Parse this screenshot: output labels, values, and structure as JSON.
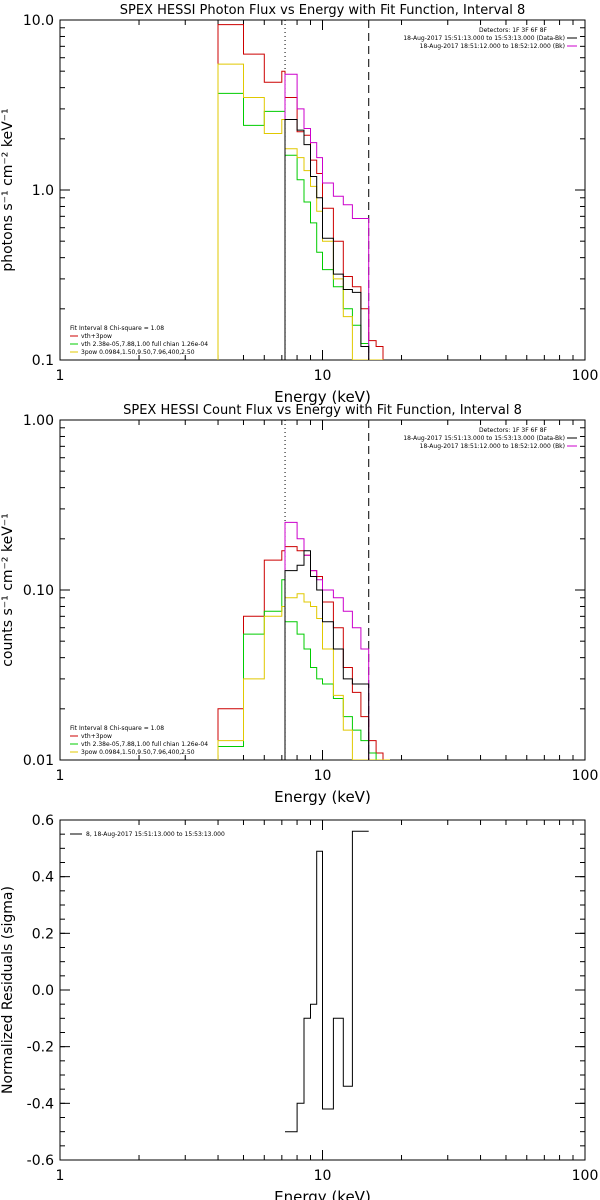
{
  "colors": {
    "black": "#000000",
    "red": "#cc0000",
    "green": "#00cc00",
    "yellow": "#e0c800",
    "magenta": "#cc00cc",
    "blue": "#0000cc"
  },
  "chart_data": [
    {
      "type": "line",
      "step": true,
      "title": "SPEX HESSI Photon Flux vs Energy with Fit Function, Interval 8",
      "xlabel": "Energy  (keV)",
      "ylabel": "photons s⁻¹ cm⁻² keV⁻¹",
      "xscale": "log",
      "yscale": "log",
      "xlim": [
        1,
        100
      ],
      "ylim": [
        0.1,
        10
      ],
      "xticks": [
        "1",
        "10",
        "100"
      ],
      "yticks": [
        "0.1",
        "1.0",
        "10.0"
      ],
      "vlines": [
        {
          "x": 7.2,
          "style": "dotted"
        },
        {
          "x": 15,
          "style": "dashed"
        }
      ],
      "legend_topright": {
        "header": "Detectors: 1F 3F 6F 8F",
        "entries": [
          "18-Aug-2017 15:51:13.000 to 15:53:13.000 (Data-Bk)",
          "18-Aug-2017 18:51:12.000 to 18:52:12.000 (Bk)"
        ]
      },
      "legend_bottomleft": {
        "header": "Fit Interval  8    Chi-square = 1.08",
        "entries": [
          "vth+3pow",
          "vth  2.38e-05,7.88,1.00   full chian 1.26e-04",
          "3pow  0.0984,1.50,9.50,7.96,400,2.50"
        ]
      },
      "edges": [
        4,
        5,
        6,
        7,
        7.2,
        8,
        8.5,
        9,
        9.5,
        10,
        11,
        12,
        13,
        14,
        15,
        16,
        17
      ],
      "series": [
        {
          "name": "vth+3pow",
          "color": "red",
          "values": [
            9.4,
            6.3,
            4.3,
            5.0,
            3.5,
            2.2,
            2.1,
            1.5,
            1.25,
            0.78,
            0.5,
            0.31,
            0.27,
            0.2,
            0.13,
            0.12
          ]
        },
        {
          "name": "vth  2.38e-05,7.88,1.00   full chian 1.26e-04",
          "color": "green",
          "values": [
            3.7,
            2.4,
            2.9,
            2.9,
            1.6,
            1.15,
            0.85,
            0.64,
            0.43,
            0.34,
            0.27,
            0.2,
            0.16,
            0.125,
            0.1,
            0.1
          ]
        },
        {
          "name": "3pow  0.0984,1.50,9.50,7.96,400,2.50",
          "color": "yellow",
          "values": [
            5.5,
            3.5,
            2.15,
            2.6,
            1.75,
            1.55,
            1.3,
            1.05,
            0.75,
            0.5,
            0.3,
            0.18,
            0.1,
            0.1,
            0.1,
            0.1
          ]
        },
        {
          "name": "18-Aug-2017 18:51:12.000 to 18:52:12.000 (Bk)",
          "color": "magenta",
          "values": [
            null,
            null,
            null,
            null,
            4.8,
            3.0,
            2.3,
            1.9,
            1.55,
            1.1,
            0.92,
            0.82,
            0.68,
            0.68,
            null,
            null
          ]
        },
        {
          "name": "18-Aug-2017 15:51:13.000 to 15:53:13.000 (Data-Bk)",
          "color": "black",
          "values": [
            null,
            null,
            null,
            null,
            2.6,
            2.25,
            1.85,
            1.2,
            0.9,
            0.52,
            0.32,
            0.26,
            0.25,
            0.12,
            null,
            null
          ]
        }
      ]
    },
    {
      "type": "line",
      "step": true,
      "title": "SPEX HESSI Count Flux vs Energy with Fit Function, Interval 8",
      "xlabel": "Energy  (keV)",
      "ylabel": "counts s⁻¹ cm⁻² keV⁻¹",
      "xscale": "log",
      "yscale": "log",
      "xlim": [
        1,
        100
      ],
      "ylim": [
        0.01,
        1
      ],
      "xticks": [
        "1",
        "10",
        "100"
      ],
      "yticks": [
        "0.01",
        "0.10",
        "1.00"
      ],
      "vlines": [
        {
          "x": 7.2,
          "style": "dotted"
        },
        {
          "x": 15,
          "style": "dashed"
        }
      ],
      "legend_topright": {
        "header": "Detectors: 1F 3F 6F 8F",
        "entries": [
          "18-Aug-2017 15:51:13.000 to 15:53:13.000 (Data-Bk)",
          "18-Aug-2017 18:51:12.000 to 18:52:12.000 (Bk)"
        ]
      },
      "legend_bottomleft": {
        "header": "Fit Interval  8    Chi-square = 1.08",
        "entries": [
          "vth+3pow",
          "vth  2.38e-05,7.88,1.00   full chian 1.26e-04",
          "3pow  0.0984,1.50,9.50,7.96,400,2.50"
        ]
      },
      "edges": [
        4,
        5,
        6,
        7,
        7.2,
        8,
        8.5,
        9,
        9.5,
        10,
        11,
        12,
        13,
        14,
        15,
        16,
        17,
        18
      ],
      "series": [
        {
          "name": "vth+3pow",
          "color": "red",
          "values": [
            0.02,
            0.07,
            0.15,
            0.17,
            0.18,
            0.17,
            0.16,
            0.13,
            0.12,
            0.085,
            0.06,
            0.035,
            0.025,
            0.018,
            0.013,
            0.011,
            0.01
          ]
        },
        {
          "name": "vth  2.38e-05,7.88,1.00   full chian 1.26e-04",
          "color": "green",
          "values": [
            0.012,
            0.055,
            0.075,
            0.115,
            0.065,
            0.055,
            0.045,
            0.035,
            0.03,
            0.028,
            0.023,
            0.018,
            0.015,
            0.013,
            0.011,
            0.01,
            0.01
          ]
        },
        {
          "name": "3pow  0.0984,1.50,9.50,7.96,400,2.50",
          "color": "yellow",
          "values": [
            0.013,
            0.03,
            0.07,
            0.08,
            0.09,
            0.095,
            0.085,
            0.08,
            0.068,
            0.045,
            0.024,
            0.015,
            0.01,
            0.01,
            0.01,
            0.01,
            0.01
          ]
        },
        {
          "name": "18-Aug-2017 18:51:12.000 to 18:52:12.000 (Bk)",
          "color": "magenta",
          "values": [
            null,
            null,
            null,
            null,
            0.25,
            0.2,
            0.16,
            0.13,
            0.115,
            0.1,
            0.09,
            0.075,
            0.06,
            0.045,
            null,
            null,
            null
          ]
        },
        {
          "name": "18-Aug-2017 15:51:13.000 to 15:53:13.000 (Data-Bk)",
          "color": "black",
          "values": [
            null,
            null,
            null,
            null,
            0.13,
            0.14,
            0.17,
            0.12,
            0.1,
            0.065,
            0.045,
            0.03,
            0.028,
            0.028,
            null,
            null,
            null
          ]
        }
      ]
    },
    {
      "type": "line",
      "step": true,
      "title": "",
      "xlabel": "Energy  (keV)",
      "ylabel": "Normalized Residuals (sigma)",
      "xscale": "log",
      "yscale": "linear",
      "xlim": [
        1,
        100
      ],
      "ylim": [
        -0.6,
        0.6
      ],
      "xticks": [
        "1",
        "10",
        "100"
      ],
      "yticks": [
        "-0.6",
        "-0.4",
        "-0.2",
        "0.0",
        "0.2",
        "0.4",
        "0.6"
      ],
      "legend": "8, 18-Aug-2017 15:51:13.000 to 15:53:13.000",
      "edges": [
        7.2,
        8,
        8.5,
        9,
        9.5,
        10,
        11,
        12,
        13,
        14,
        15
      ],
      "series": [
        {
          "name": "8, 18-Aug-2017 15:51:13.000 to 15:53:13.000",
          "color": "black",
          "values": [
            -0.5,
            -0.4,
            -0.1,
            -0.05,
            0.49,
            -0.42,
            -0.1,
            -0.34,
            0.56,
            0.56
          ]
        }
      ]
    }
  ]
}
